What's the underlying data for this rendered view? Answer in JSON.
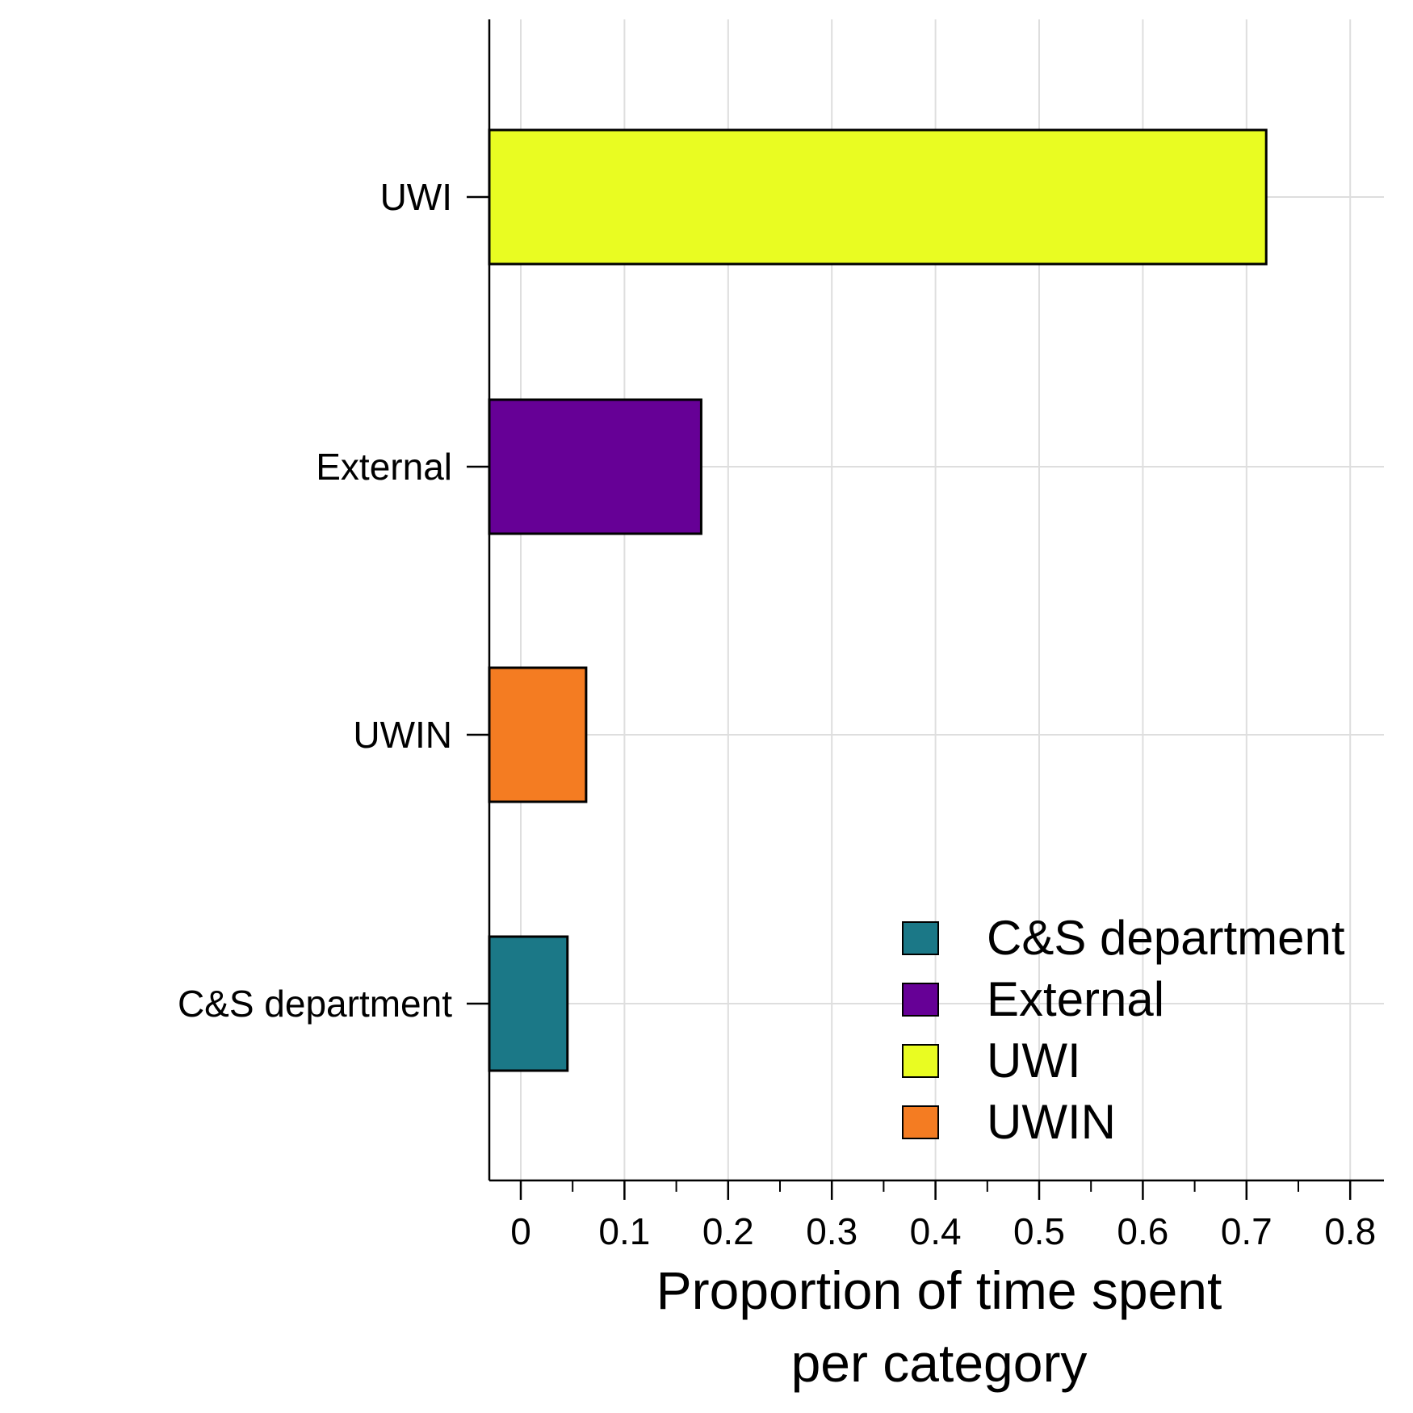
{
  "chart_data": {
    "type": "bar",
    "orientation": "horizontal",
    "categories": [
      "C&S department",
      "UWIN",
      "External",
      "UWI"
    ],
    "values": [
      0.045,
      0.063,
      0.174,
      0.719
    ],
    "colors": {
      "C&S department": "#1b7887",
      "External": "#660096",
      "UWI": "#e9fc22",
      "UWIN": "#f47c22"
    },
    "xlabel": [
      "Proportion of time spent",
      "per category"
    ],
    "ylabel": "",
    "title": "",
    "xlim": [
      -0.032,
      0.832
    ],
    "x_ticks": [
      "0",
      "0.1",
      "0.2",
      "0.3",
      "0.4",
      "0.5",
      "0.6",
      "0.7",
      "0.8"
    ],
    "grid": true,
    "legend": {
      "position": "bottom-right",
      "entries": [
        "C&S department",
        "External",
        "UWI",
        "UWIN"
      ]
    }
  }
}
